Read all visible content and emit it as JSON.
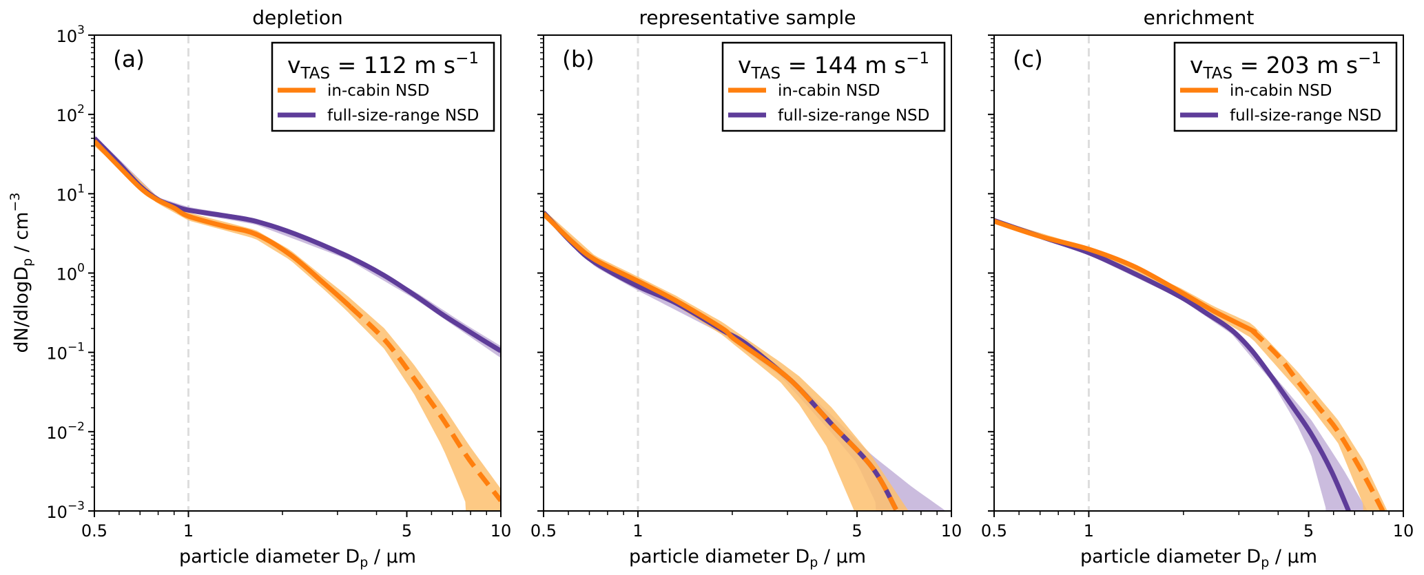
{
  "figure": {
    "ylabel_main": "dN/dlogD",
    "ylabel_sub": "p",
    "ylabel_tail": " / cm",
    "ylabel_sup": "−3",
    "xlabel_main": "particle diameter D",
    "xlabel_sub": "p",
    "xlabel_tail": " / µm",
    "legend_entries": [
      "in-cabin NSD",
      "full-size-range NSD"
    ],
    "legend_speed_prefix": "v",
    "legend_speed_sub": "TAS",
    "legend_speed_unit": "m s",
    "legend_speed_unit_sup": "−1"
  },
  "colors": {
    "in_cabin_line": "#ff7f0e",
    "in_cabin_band": "#fdbf6f",
    "full_size_line": "#5e3c99",
    "full_size_band": "#c2b0d8",
    "reference_line": "#dddddd",
    "axis": "#000000"
  },
  "chart_data": [
    {
      "type": "line",
      "title": "depletion",
      "panel_label": "(a)",
      "speed_value": "112",
      "xlabel": "particle diameter Dp / µm",
      "ylabel": "dN/dlogDp / cm−3",
      "xscale": "log",
      "yscale": "log",
      "xlim": [
        0.5,
        10
      ],
      "ylim": [
        0.001,
        1000
      ],
      "xticks": [
        0.5,
        1,
        5,
        10
      ],
      "xtick_labels": [
        "0.5",
        "1",
        "5",
        "10"
      ],
      "yticks": [
        0.001,
        0.01,
        0.1,
        1,
        10,
        100,
        1000
      ],
      "ytick_labels": [
        "10^-3",
        "10^-2",
        "10^-1",
        "10^0",
        "10^1",
        "10^2",
        "10^3"
      ],
      "reference_x": 1,
      "legend": "top-right",
      "grid": false,
      "series": [
        {
          "name": "full-size-range NSD",
          "color_key": "full_size",
          "values": [
            [
              0.5,
              50
            ],
            [
              0.6,
              24
            ],
            [
              0.7,
              12.5
            ],
            [
              0.8,
              8.4
            ],
            [
              0.9,
              7.0
            ],
            [
              1.0,
              6.2
            ],
            [
              1.3,
              5.3
            ],
            [
              1.64,
              4.5
            ],
            [
              2.2,
              3.1
            ],
            [
              3.22,
              1.64
            ],
            [
              4.2,
              0.95
            ],
            [
              5.36,
              0.51
            ],
            [
              6.5,
              0.3
            ],
            [
              7.5,
              0.21
            ],
            [
              8.7,
              0.145
            ],
            [
              10,
              0.104
            ]
          ],
          "band_upper": [
            [
              0.5,
              55
            ],
            [
              0.8,
              9.0
            ],
            [
              1.0,
              6.8
            ],
            [
              1.64,
              4.9
            ],
            [
              3.22,
              1.8
            ],
            [
              5.36,
              0.57
            ],
            [
              7.5,
              0.24
            ],
            [
              10,
              0.12
            ]
          ],
          "band_lower": [
            [
              0.5,
              46
            ],
            [
              0.8,
              7.9
            ],
            [
              1.0,
              5.8
            ],
            [
              1.64,
              4.1
            ],
            [
              3.22,
              1.5
            ],
            [
              5.36,
              0.46
            ],
            [
              7.5,
              0.185
            ],
            [
              10,
              0.085
            ]
          ],
          "dashed_from": null
        },
        {
          "name": "in-cabin NSD",
          "color_key": "in_cabin",
          "values": [
            [
              0.5,
              46
            ],
            [
              0.593,
              23
            ],
            [
              0.704,
              11.7
            ],
            [
              0.79,
              8.5
            ],
            [
              0.9,
              6.6
            ],
            [
              1.0,
              5.2
            ],
            [
              1.3,
              3.9
            ],
            [
              1.64,
              3.1
            ],
            [
              2.12,
              1.7
            ],
            [
              2.74,
              0.72
            ],
            [
              3.22,
              0.41
            ],
            [
              4.24,
              0.145
            ],
            [
              5.27,
              0.047
            ],
            [
              6.49,
              0.0148
            ],
            [
              7.9,
              0.0045
            ],
            [
              10,
              0.00135
            ]
          ],
          "band_upper": [
            [
              0.5,
              52
            ],
            [
              0.79,
              9.3
            ],
            [
              1.0,
              5.8
            ],
            [
              1.64,
              3.5
            ],
            [
              2.12,
              1.95
            ],
            [
              2.74,
              0.86
            ],
            [
              3.22,
              0.52
            ],
            [
              4.24,
              0.2
            ],
            [
              5.27,
              0.07
            ],
            [
              6.49,
              0.022
            ],
            [
              7.9,
              0.0068
            ],
            [
              10,
              0.0019
            ]
          ],
          "band_lower": [
            [
              0.5,
              40
            ],
            [
              0.79,
              7.7
            ],
            [
              1.0,
              4.6
            ],
            [
              1.64,
              2.7
            ],
            [
              2.12,
              1.45
            ],
            [
              2.74,
              0.6
            ],
            [
              3.22,
              0.33
            ],
            [
              4.24,
              0.11
            ],
            [
              5.27,
              0.03
            ],
            [
              6.49,
              0.0065
            ],
            [
              7.3,
              0.0022
            ],
            [
              7.9,
              0.001
            ]
          ],
          "dashed_from": 3.3
        }
      ]
    },
    {
      "type": "line",
      "title": "representative sample",
      "panel_label": "(b)",
      "speed_value": "144",
      "xlabel": "particle diameter Dp / µm",
      "ylabel": "dN/dlogDp / cm−3",
      "xscale": "log",
      "yscale": "log",
      "xlim": [
        0.5,
        10
      ],
      "ylim": [
        0.001,
        1000
      ],
      "xticks": [
        0.5,
        1,
        5,
        10
      ],
      "xtick_labels": [
        "0.5",
        "1",
        "5",
        "10"
      ],
      "reference_x": 1,
      "legend": "top-right",
      "grid": false,
      "series": [
        {
          "name": "full-size-range NSD",
          "color_key": "full_size",
          "values": [
            [
              0.5,
              5.8
            ],
            [
              0.616,
              2.4
            ],
            [
              0.73,
              1.35
            ],
            [
              1.0,
              0.68
            ],
            [
              1.32,
              0.42
            ],
            [
              1.86,
              0.19
            ],
            [
              2.2,
              0.13
            ],
            [
              2.85,
              0.057
            ],
            [
              3.27,
              0.035
            ],
            [
              4.16,
              0.0123
            ],
            [
              5.6,
              0.0035
            ],
            [
              6.66,
              0.00104
            ]
          ],
          "band_upper": [
            [
              0.5,
              6.3
            ],
            [
              0.73,
              1.5
            ],
            [
              1.0,
              0.75
            ],
            [
              1.86,
              0.21
            ],
            [
              2.85,
              0.065
            ],
            [
              4.16,
              0.016
            ],
            [
              5.6,
              0.005
            ],
            [
              7.5,
              0.002
            ],
            [
              9.6,
              0.001
            ]
          ],
          "band_lower": [
            [
              0.5,
              5.3
            ],
            [
              0.73,
              1.2
            ],
            [
              1.0,
              0.6
            ],
            [
              1.86,
              0.17
            ],
            [
              2.85,
              0.05
            ],
            [
              4.16,
              0.0095
            ],
            [
              5.0,
              0.004
            ],
            [
              5.9,
              0.001
            ]
          ],
          "dashed_from": null
        },
        {
          "name": "in-cabin NSD",
          "color_key": "in_cabin",
          "values": [
            [
              0.5,
              5.6
            ],
            [
              0.616,
              2.5
            ],
            [
              0.73,
              1.47
            ],
            [
              1.0,
              0.79
            ],
            [
              1.32,
              0.45
            ],
            [
              1.86,
              0.2
            ],
            [
              2.04,
              0.145
            ],
            [
              2.85,
              0.057
            ],
            [
              3.27,
              0.035
            ],
            [
              4.16,
              0.0123
            ],
            [
              5.6,
              0.0035
            ],
            [
              6.66,
              0.00104
            ]
          ],
          "band_upper": [
            [
              0.5,
              6.3
            ],
            [
              0.73,
              1.65
            ],
            [
              1.0,
              0.9
            ],
            [
              1.32,
              0.52
            ],
            [
              1.86,
              0.24
            ],
            [
              2.85,
              0.075
            ],
            [
              3.27,
              0.05
            ],
            [
              4.16,
              0.02
            ],
            [
              5.6,
              0.0048
            ],
            [
              7.3,
              0.001
            ]
          ],
          "band_lower": [
            [
              0.5,
              5.0
            ],
            [
              0.73,
              1.3
            ],
            [
              1.0,
              0.7
            ],
            [
              1.32,
              0.39
            ],
            [
              1.86,
              0.165
            ],
            [
              2.85,
              0.042
            ],
            [
              3.27,
              0.022
            ],
            [
              4.0,
              0.0065
            ],
            [
              4.9,
              0.001
            ]
          ],
          "dashed_from": 3.3
        }
      ]
    },
    {
      "type": "line",
      "title": "enrichment",
      "panel_label": "(c)",
      "speed_value": "203",
      "xlabel": "particle diameter Dp / µm",
      "ylabel": "dN/dlogDp / cm−3",
      "xscale": "log",
      "yscale": "log",
      "xlim": [
        0.5,
        10
      ],
      "ylim": [
        0.001,
        1000
      ],
      "xticks": [
        0.5,
        1,
        5,
        10
      ],
      "xtick_labels": [
        "0.5",
        "1",
        "5",
        "10"
      ],
      "reference_x": 1,
      "legend": "top-right",
      "grid": false,
      "series": [
        {
          "name": "full-size-range NSD",
          "color_key": "full_size",
          "values": [
            [
              0.5,
              4.6
            ],
            [
              0.7,
              2.9
            ],
            [
              1.0,
              1.8
            ],
            [
              1.4,
              0.98
            ],
            [
              1.94,
              0.51
            ],
            [
              2.4,
              0.3
            ],
            [
              2.85,
              0.19
            ],
            [
              3.3,
              0.105
            ],
            [
              3.8,
              0.05
            ],
            [
              4.4,
              0.022
            ],
            [
              5.1,
              0.0093
            ],
            [
              5.9,
              0.0032
            ],
            [
              6.7,
              0.001
            ]
          ],
          "band_upper": [
            [
              0.5,
              4.8
            ],
            [
              1.0,
              1.9
            ],
            [
              1.94,
              0.54
            ],
            [
              2.85,
              0.2
            ],
            [
              3.8,
              0.056
            ],
            [
              5.1,
              0.014
            ],
            [
              6.4,
              0.0035
            ],
            [
              7.7,
              0.001
            ]
          ],
          "band_lower": [
            [
              0.5,
              4.4
            ],
            [
              1.0,
              1.7
            ],
            [
              1.94,
              0.48
            ],
            [
              2.85,
              0.17
            ],
            [
              3.8,
              0.044
            ],
            [
              4.6,
              0.012
            ],
            [
              5.1,
              0.005
            ],
            [
              5.7,
              0.001
            ]
          ],
          "dashed_from": null
        },
        {
          "name": "in-cabin NSD",
          "color_key": "in_cabin",
          "values": [
            [
              0.5,
              4.5
            ],
            [
              0.7,
              2.9
            ],
            [
              1.0,
              2.0
            ],
            [
              1.4,
              1.2
            ],
            [
              1.94,
              0.59
            ],
            [
              2.5,
              0.33
            ],
            [
              3.3,
              0.19
            ],
            [
              4.0,
              0.09
            ],
            [
              4.6,
              0.044
            ],
            [
              5.4,
              0.02
            ],
            [
              6.2,
              0.01
            ],
            [
              7.5,
              0.0028
            ],
            [
              8.6,
              0.001
            ]
          ],
          "band_upper": [
            [
              0.5,
              4.8
            ],
            [
              1.0,
              2.1
            ],
            [
              1.94,
              0.66
            ],
            [
              2.5,
              0.38
            ],
            [
              3.3,
              0.23
            ],
            [
              4.6,
              0.058
            ],
            [
              6.2,
              0.014
            ],
            [
              7.5,
              0.0042
            ],
            [
              8.9,
              0.001
            ]
          ],
          "band_lower": [
            [
              0.5,
              4.2
            ],
            [
              1.0,
              1.9
            ],
            [
              1.94,
              0.53
            ],
            [
              2.5,
              0.29
            ],
            [
              3.3,
              0.15
            ],
            [
              4.6,
              0.034
            ],
            [
              6.2,
              0.0072
            ],
            [
              7.6,
              0.001
            ]
          ],
          "dashed_from": 3.3
        }
      ]
    }
  ]
}
